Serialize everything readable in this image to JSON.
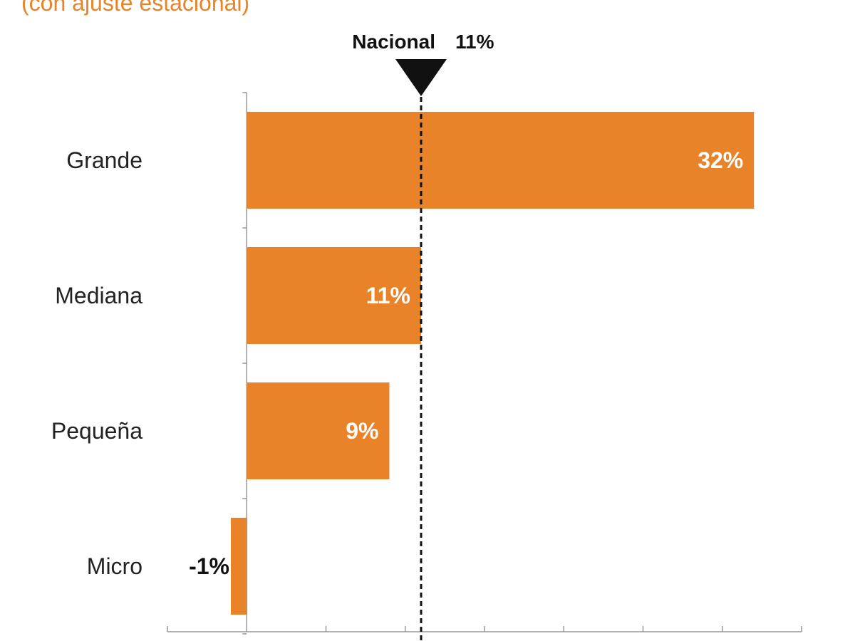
{
  "chart_data": {
    "type": "bar",
    "orientation": "horizontal",
    "subtitle": "(con ajuste estacional)",
    "categories": [
      "Grande",
      "Mediana",
      "Pequeña",
      "Micro"
    ],
    "values": [
      32,
      11,
      9,
      -1
    ],
    "value_labels": [
      "32%",
      "11%",
      "9%",
      "-1%"
    ],
    "reference_line": {
      "label": "Nacional",
      "value_label": "11%",
      "value": 11,
      "style": "dashed",
      "marker": "down-triangle"
    },
    "xlim": [
      -5,
      35
    ],
    "grid": false,
    "legend": "none",
    "colors": {
      "bar": "#E8832A",
      "inside_label": "#ffffff",
      "outside_label": "#111111",
      "axis": "#999999",
      "subtitle": "#E8832A"
    }
  }
}
